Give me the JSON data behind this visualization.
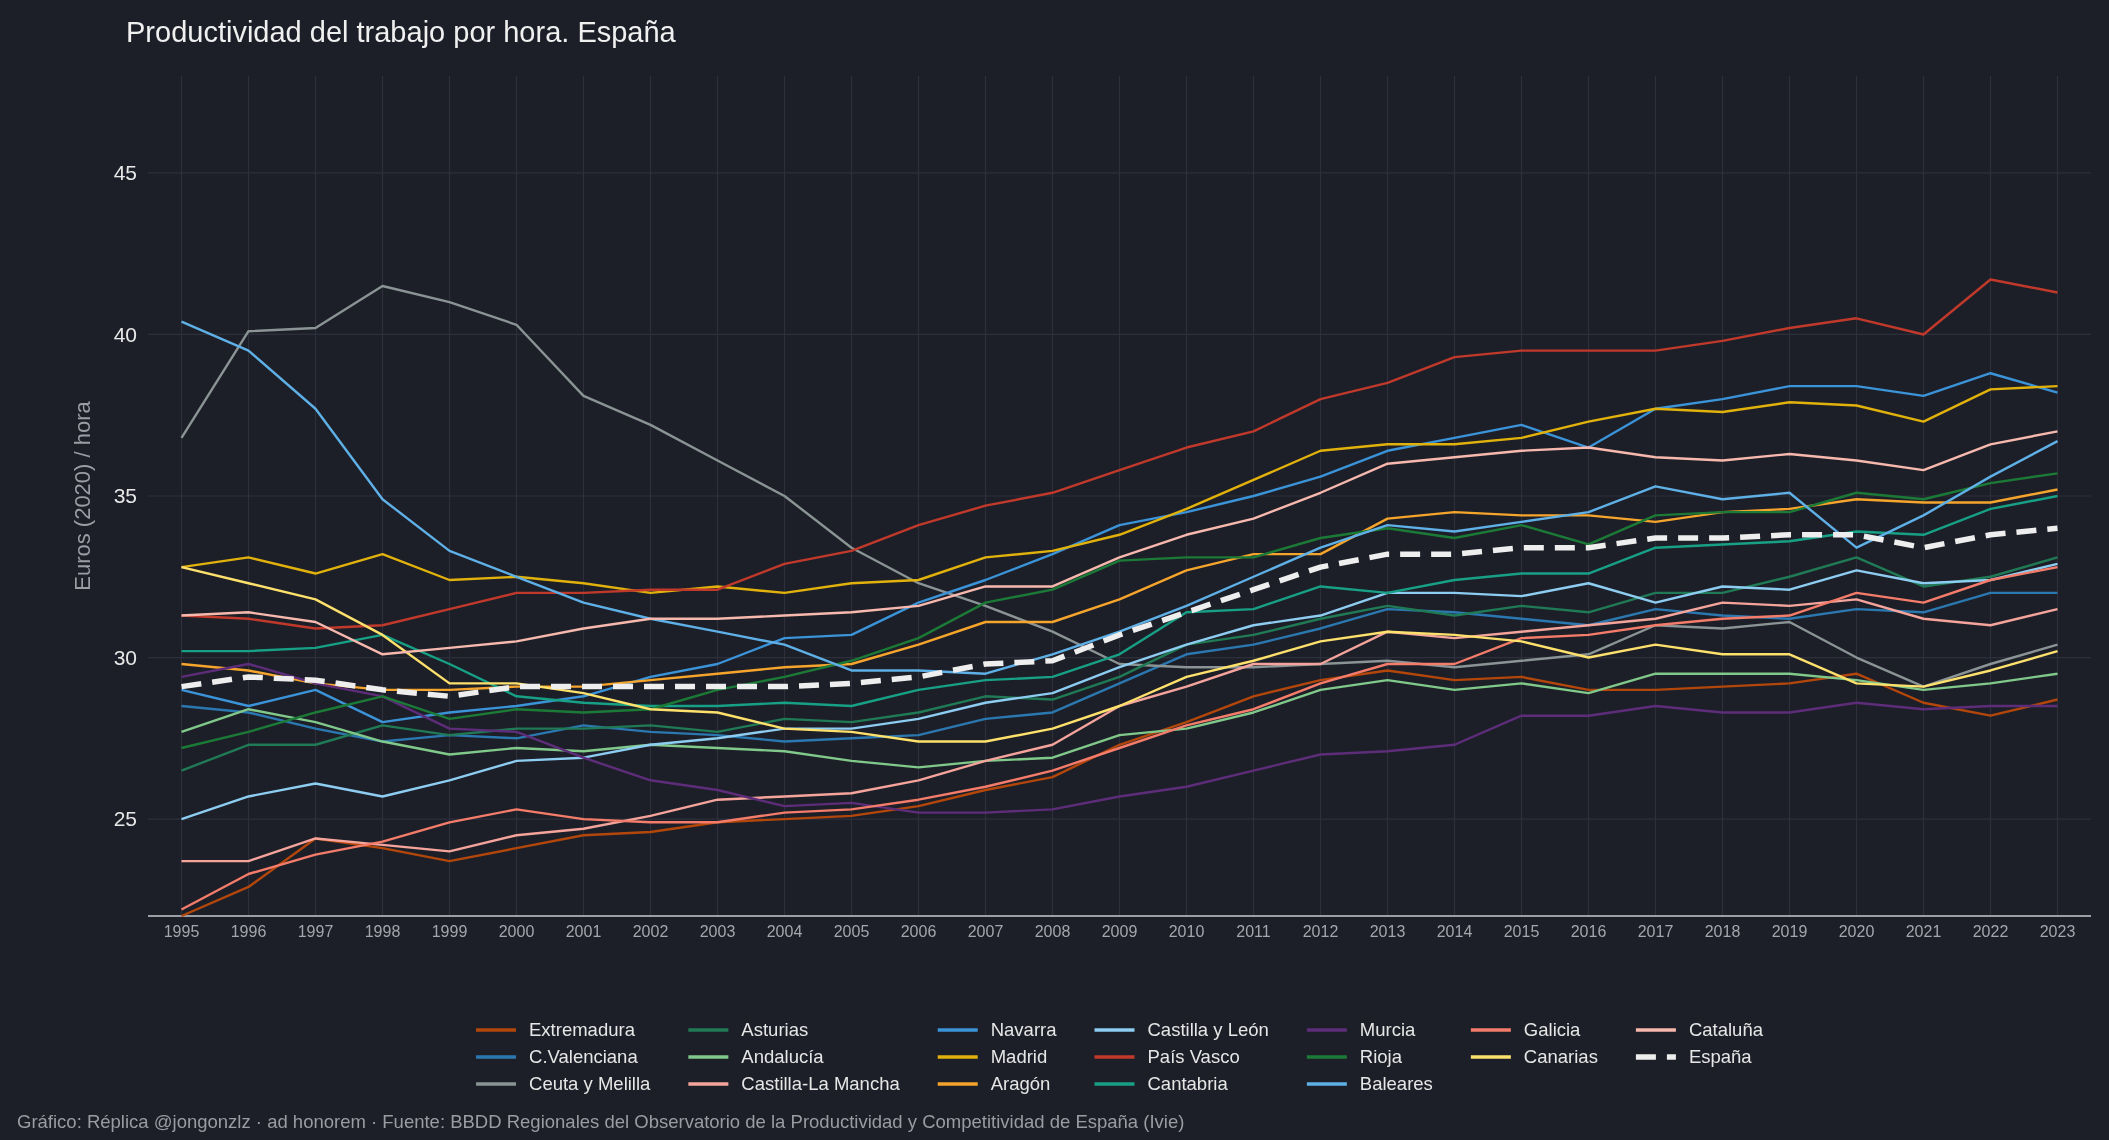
{
  "chart_data": {
    "type": "line",
    "title": "Productividad del trabajo por hora. España",
    "ylabel": "Euros (2020) / hora",
    "annotations": [
      "Gráfico: Réplica @jongonzlz · ad honorem  ·  Fuente: BBDD Regionales del Observatorio de la Productividad y Competitividad de España (Ivie)"
    ],
    "x": [
      1995,
      1996,
      1997,
      1998,
      1999,
      2000,
      2001,
      2002,
      2003,
      2004,
      2005,
      2006,
      2007,
      2008,
      2009,
      2010,
      2011,
      2012,
      2013,
      2014,
      2015,
      2016,
      2017,
      2018,
      2019,
      2020,
      2021,
      2022,
      2023
    ],
    "xlim": [
      1994.5,
      2023.5
    ],
    "xticks": [
      1995,
      1996,
      1997,
      1998,
      1999,
      2000,
      2001,
      2002,
      2003,
      2004,
      2005,
      2006,
      2007,
      2008,
      2009,
      2010,
      2011,
      2012,
      2013,
      2014,
      2015,
      2016,
      2017,
      2018,
      2019,
      2020,
      2021,
      2022,
      2023
    ],
    "ylim": [
      22,
      48
    ],
    "yticks": [
      25,
      30,
      35,
      40,
      45
    ],
    "grid": true,
    "legend": "bottom",
    "series": [
      {
        "name": "Extremadura",
        "color": "#b3470b",
        "values": [
          22.0,
          22.9,
          24.4,
          24.1,
          23.7,
          24.1,
          24.5,
          24.6,
          24.9,
          25.0,
          25.1,
          25.4,
          25.9,
          26.3,
          27.3,
          28.0,
          28.8,
          29.3,
          29.6,
          29.3,
          29.4,
          29.0,
          29.0,
          29.1,
          29.2,
          29.5,
          28.6,
          28.2,
          28.7
        ]
      },
      {
        "name": "C.Valenciana",
        "color": "#2b78b0",
        "values": [
          28.5,
          28.3,
          27.8,
          27.4,
          27.6,
          27.5,
          27.9,
          27.7,
          27.6,
          27.4,
          27.5,
          27.6,
          28.1,
          28.3,
          29.2,
          30.1,
          30.4,
          30.9,
          31.5,
          31.4,
          31.2,
          31.0,
          31.5,
          31.3,
          31.2,
          31.5,
          31.4,
          32.0,
          32.0
        ]
      },
      {
        "name": "Ceuta y Melilla",
        "color": "#8a9494",
        "values": [
          36.8,
          40.1,
          40.2,
          41.5,
          41.0,
          40.3,
          38.1,
          37.2,
          36.1,
          35.0,
          33.4,
          32.3,
          31.6,
          30.8,
          29.8,
          29.7,
          29.7,
          29.8,
          29.9,
          29.7,
          29.9,
          30.1,
          31.0,
          30.9,
          31.1,
          30.0,
          29.1,
          29.8,
          30.4
        ]
      },
      {
        "name": "Asturias",
        "color": "#1f7a55",
        "values": [
          26.5,
          27.3,
          27.3,
          27.9,
          27.6,
          27.8,
          27.8,
          27.9,
          27.7,
          28.1,
          28.0,
          28.3,
          28.8,
          28.7,
          29.4,
          30.4,
          30.7,
          31.2,
          31.6,
          31.3,
          31.6,
          31.4,
          32.0,
          32.0,
          32.5,
          33.1,
          32.2,
          32.5,
          33.1
        ]
      },
      {
        "name": "Andalucía",
        "color": "#80c98a",
        "values": [
          27.7,
          28.4,
          28.0,
          27.4,
          27.0,
          27.2,
          27.1,
          27.3,
          27.2,
          27.1,
          26.8,
          26.6,
          26.8,
          26.9,
          27.6,
          27.8,
          28.3,
          29.0,
          29.3,
          29.0,
          29.2,
          28.9,
          29.5,
          29.5,
          29.5,
          29.3,
          29.0,
          29.2,
          29.5
        ]
      },
      {
        "name": "Castilla-La Mancha",
        "color": "#f5a49c",
        "values": [
          23.7,
          23.7,
          24.4,
          24.2,
          24.0,
          24.5,
          24.7,
          25.1,
          25.6,
          25.7,
          25.8,
          26.2,
          26.8,
          27.3,
          28.5,
          29.1,
          29.8,
          29.8,
          30.8,
          30.6,
          30.8,
          31.0,
          31.2,
          31.7,
          31.6,
          31.8,
          31.2,
          31.0,
          31.5
        ]
      },
      {
        "name": "Navarra",
        "color": "#3b93d8",
        "values": [
          29.0,
          28.5,
          29.0,
          28.0,
          28.3,
          28.5,
          28.8,
          29.4,
          29.8,
          30.6,
          30.7,
          31.7,
          32.4,
          33.2,
          34.1,
          34.5,
          35.0,
          35.6,
          36.4,
          36.8,
          37.2,
          36.5,
          37.7,
          38.0,
          38.4,
          38.4,
          38.1,
          38.8,
          38.2
        ]
      },
      {
        "name": "Madrid",
        "color": "#e2b20c",
        "values": [
          32.8,
          33.1,
          32.6,
          33.2,
          32.4,
          32.5,
          32.3,
          32.0,
          32.2,
          32.0,
          32.3,
          32.4,
          33.1,
          33.3,
          33.8,
          34.6,
          35.5,
          36.4,
          36.6,
          36.6,
          36.8,
          37.3,
          37.7,
          37.6,
          37.9,
          37.8,
          37.3,
          38.3,
          38.4
        ]
      },
      {
        "name": "Aragón",
        "color": "#f6a52c",
        "values": [
          29.8,
          29.6,
          29.2,
          29.0,
          29.0,
          29.1,
          29.1,
          29.3,
          29.5,
          29.7,
          29.8,
          30.4,
          31.1,
          31.1,
          31.8,
          32.7,
          33.2,
          33.2,
          34.3,
          34.5,
          34.4,
          34.4,
          34.2,
          34.5,
          34.6,
          34.9,
          34.8,
          34.8,
          35.2
        ]
      },
      {
        "name": "Castilla y León",
        "color": "#8ecdf2",
        "values": [
          25.0,
          25.7,
          26.1,
          25.7,
          26.2,
          26.8,
          26.9,
          27.3,
          27.5,
          27.8,
          27.8,
          28.1,
          28.6,
          28.9,
          29.7,
          30.4,
          31.0,
          31.3,
          32.0,
          32.0,
          31.9,
          32.3,
          31.7,
          32.2,
          32.1,
          32.7,
          32.3,
          32.4,
          32.9
        ]
      },
      {
        "name": "País Vasco",
        "color": "#c0392b",
        "values": [
          31.3,
          31.2,
          30.9,
          31.0,
          31.5,
          32.0,
          32.0,
          32.1,
          32.1,
          32.9,
          33.3,
          34.1,
          34.7,
          35.1,
          35.8,
          36.5,
          37.0,
          38.0,
          38.5,
          39.3,
          39.5,
          39.5,
          39.5,
          39.8,
          40.2,
          40.5,
          40.0,
          41.7,
          41.3
        ]
      },
      {
        "name": "Cantabria",
        "color": "#17a085",
        "values": [
          30.2,
          30.2,
          30.3,
          30.7,
          29.8,
          28.8,
          28.6,
          28.5,
          28.5,
          28.6,
          28.5,
          29.0,
          29.3,
          29.4,
          30.1,
          31.4,
          31.5,
          32.2,
          32.0,
          32.4,
          32.6,
          32.6,
          33.4,
          33.5,
          33.6,
          33.9,
          33.8,
          34.6,
          35.0
        ]
      },
      {
        "name": "Murcia",
        "color": "#5d2d7a",
        "values": [
          29.4,
          29.8,
          29.2,
          28.8,
          27.8,
          27.7,
          26.9,
          26.2,
          25.9,
          25.4,
          25.5,
          25.2,
          25.2,
          25.3,
          25.7,
          26.0,
          26.5,
          27.0,
          27.1,
          27.3,
          28.2,
          28.2,
          28.5,
          28.3,
          28.3,
          28.6,
          28.4,
          28.5,
          28.5
        ]
      },
      {
        "name": "Rioja",
        "color": "#1c7a37",
        "values": [
          27.2,
          27.7,
          28.3,
          28.8,
          28.1,
          28.4,
          28.3,
          28.4,
          29.0,
          29.4,
          29.9,
          30.6,
          31.7,
          32.1,
          33.0,
          33.1,
          33.1,
          33.7,
          34.0,
          33.7,
          34.1,
          33.5,
          34.4,
          34.5,
          34.5,
          35.1,
          34.9,
          35.4,
          35.7
        ]
      },
      {
        "name": "Baleares",
        "color": "#5eb0e6",
        "values": [
          40.4,
          39.5,
          37.7,
          34.9,
          33.3,
          32.5,
          31.7,
          31.2,
          30.8,
          30.4,
          29.6,
          29.6,
          29.5,
          30.1,
          30.8,
          31.6,
          32.5,
          33.4,
          34.1,
          33.9,
          34.2,
          34.5,
          35.3,
          34.9,
          35.1,
          33.4,
          34.4,
          35.6,
          36.7
        ]
      },
      {
        "name": "Galicia",
        "color": "#f47c6a",
        "values": [
          22.2,
          23.3,
          23.9,
          24.3,
          24.9,
          25.3,
          25.0,
          24.9,
          24.9,
          25.2,
          25.3,
          25.6,
          26.0,
          26.5,
          27.2,
          27.9,
          28.4,
          29.2,
          29.8,
          29.8,
          30.6,
          30.7,
          31.0,
          31.2,
          31.3,
          32.0,
          31.7,
          32.4,
          32.8
        ]
      },
      {
        "name": "Canarias",
        "color": "#fde16c",
        "values": [
          32.8,
          32.3,
          31.8,
          30.7,
          29.2,
          29.2,
          28.9,
          28.4,
          28.3,
          27.8,
          27.7,
          27.4,
          27.4,
          27.8,
          28.5,
          29.4,
          29.9,
          30.5,
          30.8,
          30.7,
          30.5,
          30.0,
          30.4,
          30.1,
          30.1,
          29.2,
          29.1,
          29.6,
          30.2
        ]
      },
      {
        "name": "Cataluña",
        "color": "#f7b9ae",
        "values": [
          31.3,
          31.4,
          31.1,
          30.1,
          30.3,
          30.5,
          30.9,
          31.2,
          31.2,
          31.3,
          31.4,
          31.6,
          32.2,
          32.2,
          33.1,
          33.8,
          34.3,
          35.1,
          36.0,
          36.2,
          36.4,
          36.5,
          36.2,
          36.1,
          36.3,
          36.1,
          35.8,
          36.6,
          37.0
        ]
      },
      {
        "name": "España",
        "color": "#eeeeee",
        "line_style": "dashed",
        "values": [
          29.1,
          29.4,
          29.3,
          29.0,
          28.8,
          29.1,
          29.1,
          29.1,
          29.1,
          29.1,
          29.2,
          29.4,
          29.8,
          29.9,
          30.7,
          31.4,
          32.1,
          32.8,
          33.2,
          33.2,
          33.4,
          33.4,
          33.7,
          33.7,
          33.8,
          33.8,
          33.4,
          33.8,
          34.0
        ]
      }
    ]
  }
}
